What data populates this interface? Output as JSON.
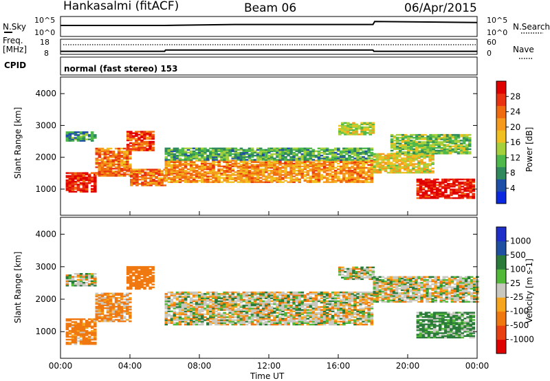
{
  "header": {
    "station": "Hankasalmi (fitACF)",
    "beam": "Beam 06",
    "date": "06/Apr/2015"
  },
  "panels": {
    "nsky": {
      "left_label": "N.Sky",
      "right_label": "N.Search",
      "left_ticks": [
        "10^5",
        "10^0"
      ],
      "right_ticks": [
        "10^5",
        "10^0"
      ]
    },
    "freq": {
      "left_label_1": "Freq.",
      "left_label_2": "[MHz]",
      "right_label": "Nave",
      "left_ticks": [
        "18",
        "8"
      ],
      "right_ticks": [
        "60",
        "0"
      ]
    },
    "cpid": {
      "label": "CPID",
      "text": "normal (fast stereo) 153"
    }
  },
  "y_axis_label": "Slant Range [km]",
  "y_ticks": [
    "4000",
    "3000",
    "2000",
    "1000"
  ],
  "x_axis_label": "Time UT",
  "x_ticks": [
    "00:00",
    "04:00",
    "08:00",
    "12:00",
    "16:00",
    "20:00",
    "00:00"
  ],
  "power_colorbar": {
    "label": "Power [dB]",
    "ticks": [
      "28",
      "24",
      "20",
      "16",
      "12",
      "8",
      "4"
    ]
  },
  "velocity_colorbar": {
    "label": "Velocity [m s-1]",
    "ticks": [
      "1000",
      "500",
      "100",
      "25",
      "-25",
      "-100",
      "-500",
      "-1000"
    ]
  },
  "colors": {
    "power": [
      "#0a28e0",
      "#1e4fa8",
      "#2e8a5c",
      "#4fb84a",
      "#a6cf3c",
      "#f0c020",
      "#f59a1c",
      "#f06a10",
      "#e83210",
      "#e00000"
    ],
    "velocity": [
      "#1e2ec8",
      "#1e4fa0",
      "#2a7a3a",
      "#52b838",
      "#c8c8c0",
      "#f7a51c",
      "#f07810",
      "#e84010",
      "#e00000"
    ]
  },
  "chart_data": [
    {
      "type": "heatmap",
      "name": "Power [dB]",
      "x_range_hours": [
        0,
        24
      ],
      "y_range_km": [
        200,
        4500
      ],
      "color_range": [
        0,
        30
      ],
      "echo_bands": [
        {
          "t0": 0.3,
          "t1": 2.0,
          "r0": 900,
          "r1": 1500,
          "level": 27
        },
        {
          "t0": 0.3,
          "t1": 2.0,
          "r0": 2500,
          "r1": 2800,
          "level": 8
        },
        {
          "t0": 2.0,
          "t1": 4.0,
          "r0": 1400,
          "r1": 2300,
          "level": 22
        },
        {
          "t0": 3.8,
          "t1": 5.3,
          "r0": 2200,
          "r1": 2800,
          "level": 24
        },
        {
          "t0": 4.0,
          "t1": 6.0,
          "r0": 1100,
          "r1": 1600,
          "level": 22
        },
        {
          "t0": 6.0,
          "t1": 18.0,
          "r0": 1200,
          "r1": 1900,
          "level": 20
        },
        {
          "t0": 6.0,
          "t1": 18.0,
          "r0": 1900,
          "r1": 2300,
          "level": 10
        },
        {
          "t0": 16.0,
          "t1": 18.0,
          "r0": 2700,
          "r1": 3100,
          "level": 14
        },
        {
          "t0": 18.0,
          "t1": 21.5,
          "r0": 1500,
          "r1": 2100,
          "level": 16
        },
        {
          "t0": 19.0,
          "t1": 23.5,
          "r0": 2100,
          "r1": 2700,
          "level": 12
        },
        {
          "t0": 20.5,
          "t1": 23.8,
          "r0": 700,
          "r1": 1300,
          "level": 28
        }
      ]
    },
    {
      "type": "heatmap",
      "name": "Velocity [m s-1]",
      "x_range_hours": [
        0,
        24
      ],
      "y_range_km": [
        200,
        4500
      ],
      "color_range": [
        -1000,
        1000
      ],
      "echo_bands": [
        {
          "t0": 0.3,
          "t1": 2.0,
          "r0": 2400,
          "r1": 2800,
          "level": 0
        },
        {
          "t0": 0.3,
          "t1": 2.0,
          "r0": 600,
          "r1": 1400,
          "level": -200
        },
        {
          "t0": 2.0,
          "t1": 4.0,
          "r0": 1300,
          "r1": 2200,
          "level": -150
        },
        {
          "t0": 3.8,
          "t1": 5.3,
          "r0": 2300,
          "r1": 3000,
          "level": -300
        },
        {
          "t0": 6.0,
          "t1": 18.0,
          "r0": 1200,
          "r1": 2200,
          "level": 0
        },
        {
          "t0": 16.0,
          "t1": 18.0,
          "r0": 2600,
          "r1": 3000,
          "level": 0
        },
        {
          "t0": 18.0,
          "t1": 24.0,
          "r0": 1900,
          "r1": 2700,
          "level": 0
        },
        {
          "t0": 20.5,
          "t1": 23.8,
          "r0": 800,
          "r1": 1600,
          "level": 150
        }
      ]
    },
    {
      "type": "line",
      "name": "N.Sky",
      "x_range_hours": [
        0,
        24
      ],
      "points": [
        [
          0,
          0.55
        ],
        [
          6,
          0.55
        ],
        [
          10,
          0.6
        ],
        [
          18,
          0.6
        ],
        [
          18.1,
          0.75
        ],
        [
          24,
          0.7
        ]
      ]
    },
    {
      "type": "line",
      "name": "Freq.",
      "x_range_hours": [
        0,
        24
      ],
      "points": [
        [
          0,
          10
        ],
        [
          6,
          10
        ],
        [
          6.05,
          10.8
        ],
        [
          18,
          10.8
        ],
        [
          18.05,
          10
        ],
        [
          24,
          10
        ]
      ]
    }
  ]
}
